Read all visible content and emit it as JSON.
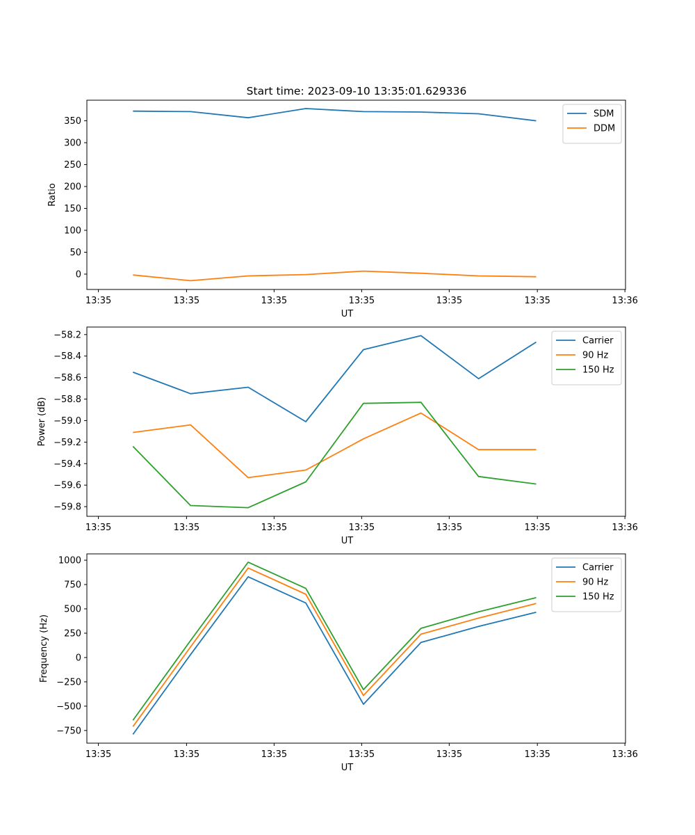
{
  "figure": {
    "title": "Start time: 2023-09-10 13:35:01.629336"
  },
  "colors": {
    "blue": "#1f77b4",
    "orange": "#ff7f0e",
    "green": "#2ca02c"
  },
  "chart_data": [
    {
      "type": "line",
      "id": "ratio",
      "title": "Start time: 2023-09-10 13:35:01.629336",
      "xlabel": "UT",
      "ylabel": "Ratio",
      "x": [
        1,
        2,
        3,
        4,
        5,
        6,
        7,
        8
      ],
      "xlim": [
        0.2,
        9.55
      ],
      "xticks": [
        0.4,
        1.93,
        3.45,
        4.97,
        6.49,
        8.02,
        9.54
      ],
      "xtick_labels": [
        "13:35",
        "13:35",
        "13:35",
        "13:35",
        "13:35",
        "13:35",
        "13:36"
      ],
      "ylim": [
        -35,
        397
      ],
      "yticks": [
        0,
        50,
        100,
        150,
        200,
        250,
        300,
        350
      ],
      "ytick_labels": [
        "0",
        "50",
        "100",
        "150",
        "200",
        "250",
        "300",
        "350"
      ],
      "legend": "top-right",
      "series": [
        {
          "name": "SDM",
          "color": "#1f77b4",
          "values": [
            372,
            371,
            357,
            378,
            371,
            370,
            366,
            350
          ]
        },
        {
          "name": "DDM",
          "color": "#ff7f0e",
          "values": [
            -2,
            -15,
            -4,
            -1,
            7,
            2,
            -4,
            -6
          ]
        }
      ]
    },
    {
      "type": "line",
      "id": "power",
      "title": "",
      "xlabel": "UT",
      "ylabel": "Power (dB)",
      "x": [
        1,
        2,
        3,
        4,
        5,
        6,
        7,
        8
      ],
      "xlim": [
        0.2,
        9.55
      ],
      "xticks": [
        0.4,
        1.93,
        3.45,
        4.97,
        6.49,
        8.02,
        9.54
      ],
      "xtick_labels": [
        "13:35",
        "13:35",
        "13:35",
        "13:35",
        "13:35",
        "13:35",
        "13:36"
      ],
      "ylim": [
        -59.89,
        -58.13
      ],
      "yticks": [
        -59.8,
        -59.6,
        -59.4,
        -59.2,
        -59.0,
        -58.8,
        -58.6,
        -58.4,
        -58.2
      ],
      "ytick_labels": [
        "−59.8",
        "−59.6",
        "−59.4",
        "−59.2",
        "−59.0",
        "−58.8",
        "−58.6",
        "−58.4",
        "−58.2"
      ],
      "legend": "top-right",
      "series": [
        {
          "name": "Carrier",
          "color": "#1f77b4",
          "values": [
            -58.55,
            -58.75,
            -58.69,
            -59.01,
            -58.34,
            -58.21,
            -58.61,
            -58.27
          ]
        },
        {
          "name": "90 Hz",
          "color": "#ff7f0e",
          "values": [
            -59.11,
            -59.04,
            -59.53,
            -59.46,
            -59.17,
            -58.93,
            -59.27,
            -59.27
          ]
        },
        {
          "name": "150 Hz",
          "color": "#2ca02c",
          "values": [
            -59.24,
            -59.79,
            -59.81,
            -59.57,
            -58.84,
            -58.83,
            -59.52,
            -59.59
          ]
        }
      ]
    },
    {
      "type": "line",
      "id": "frequency",
      "title": "",
      "xlabel": "UT",
      "ylabel": "Frequency (Hz)",
      "x": [
        1,
        2,
        3,
        4,
        5,
        6,
        7,
        8
      ],
      "xlim": [
        0.2,
        9.55
      ],
      "xticks": [
        0.4,
        1.93,
        3.45,
        4.97,
        6.49,
        8.02,
        9.54
      ],
      "xtick_labels": [
        "13:35",
        "13:35",
        "13:35",
        "13:35",
        "13:35",
        "13:35",
        "13:36"
      ],
      "ylim": [
        -880,
        1065
      ],
      "yticks": [
        -750,
        -500,
        -250,
        0,
        250,
        500,
        750,
        1000
      ],
      "ytick_labels": [
        "−750",
        "−500",
        "−250",
        "0",
        "250",
        "500",
        "750",
        "1000"
      ],
      "legend": "top-right",
      "series": [
        {
          "name": "Carrier",
          "color": "#1f77b4",
          "values": [
            -790,
            30,
            830,
            560,
            -480,
            155,
            320,
            465
          ]
        },
        {
          "name": "90 Hz",
          "color": "#ff7f0e",
          "values": [
            -710,
            110,
            920,
            650,
            -390,
            240,
            405,
            555
          ]
        },
        {
          "name": "150 Hz",
          "color": "#2ca02c",
          "values": [
            -645,
            175,
            980,
            710,
            -330,
            300,
            470,
            615
          ]
        }
      ]
    }
  ]
}
